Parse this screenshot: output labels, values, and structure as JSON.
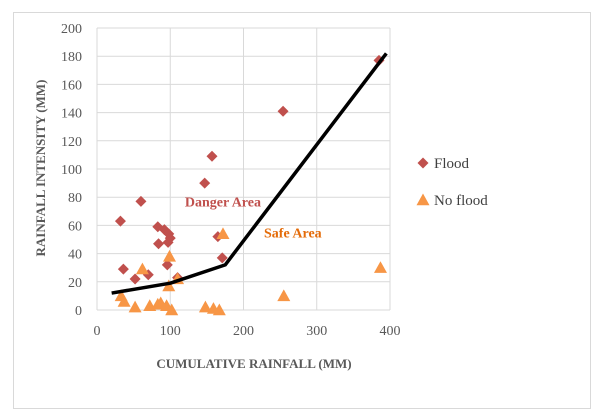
{
  "chart_data": {
    "type": "scatter",
    "title": "",
    "xlabel": "CUMULATIVE RAINFALL (MM)",
    "ylabel": "RAINFALL INTENSITY (MM)",
    "xlim": [
      0,
      400
    ],
    "ylim": [
      0,
      200
    ],
    "xticks": [
      0,
      100,
      200,
      300,
      400
    ],
    "yticks": [
      0,
      20,
      40,
      60,
      80,
      100,
      120,
      140,
      160,
      180,
      200
    ],
    "grid": true,
    "legend_position": "right",
    "series": [
      {
        "name": "Flood",
        "marker": "diamond",
        "color": "#c0504d",
        "points": [
          [
            32,
            63
          ],
          [
            36,
            29
          ],
          [
            52,
            22
          ],
          [
            60,
            77
          ],
          [
            70,
            25
          ],
          [
            83,
            59
          ],
          [
            84,
            47
          ],
          [
            92,
            57
          ],
          [
            96,
            32
          ],
          [
            97,
            48
          ],
          [
            98,
            54
          ],
          [
            100,
            51
          ],
          [
            110,
            23
          ],
          [
            147,
            90
          ],
          [
            157,
            109
          ],
          [
            165,
            52
          ],
          [
            171,
            37
          ],
          [
            254,
            141
          ],
          [
            385,
            177
          ]
        ]
      },
      {
        "name": "No flood",
        "marker": "triangle",
        "color": "#f79646",
        "points": [
          [
            33,
            10
          ],
          [
            37,
            6
          ],
          [
            52,
            2
          ],
          [
            62,
            29
          ],
          [
            72,
            3
          ],
          [
            83,
            4
          ],
          [
            87,
            5
          ],
          [
            95,
            3
          ],
          [
            98,
            17
          ],
          [
            99,
            38
          ],
          [
            102,
            0
          ],
          [
            110,
            22
          ],
          [
            148,
            2
          ],
          [
            159,
            1
          ],
          [
            167,
            0
          ],
          [
            172,
            54
          ],
          [
            255,
            10
          ],
          [
            387,
            30
          ]
        ]
      }
    ],
    "threshold_line": {
      "color": "#000000",
      "points": [
        [
          20,
          12
        ],
        [
          100,
          19
        ],
        [
          175,
          32
        ],
        [
          395,
          182
        ]
      ]
    },
    "annotations": [
      {
        "text": "Danger Area",
        "x": 120,
        "y": 77,
        "color": "#c0504d"
      },
      {
        "text": "Safe Area",
        "x": 228,
        "y": 55,
        "color": "#e46c0a"
      }
    ]
  }
}
